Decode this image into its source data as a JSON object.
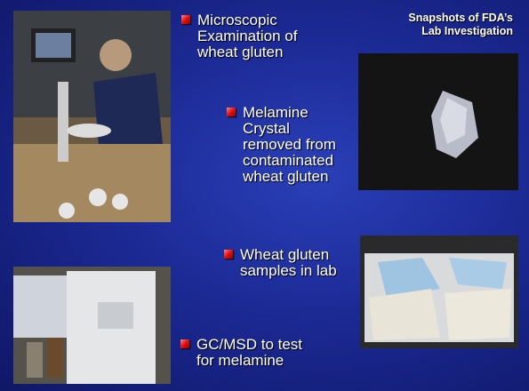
{
  "header": {
    "title_lines": [
      "Snapshots of FDA’s",
      "Lab Investigation"
    ]
  },
  "bullets": [
    {
      "lines": [
        "Microscopic",
        "Examination of",
        "wheat gluten"
      ]
    },
    {
      "lines": [
        "Melamine",
        "Crystal",
        "removed from",
        "contaminated",
        "wheat gluten"
      ]
    },
    {
      "lines": [
        "Wheat gluten",
        "samples in lab"
      ]
    },
    {
      "lines": [
        "GC/MSD to test",
        "for melamine"
      ]
    }
  ]
}
